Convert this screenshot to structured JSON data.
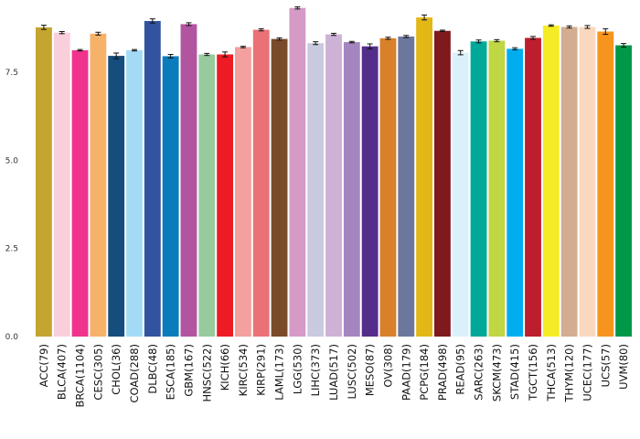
{
  "chart_data": {
    "type": "bar",
    "title": "",
    "xlabel": "",
    "ylabel": "",
    "ylim": [
      0,
      9.4
    ],
    "yticks": [
      0.0,
      2.5,
      5.0,
      7.5
    ],
    "ytick_labels": [
      "0.0",
      "2.5",
      "5.0",
      "7.5"
    ],
    "grid": false,
    "legend": "none",
    "categories": [
      "ACC(79)",
      "BLCA(407)",
      "BRCA(1104)",
      "CESC(305)",
      "CHOL(36)",
      "COAD(288)",
      "DLBC(48)",
      "ESCA(185)",
      "GBM(167)",
      "HNSC(522)",
      "KICH(66)",
      "KIRC(534)",
      "KIRP(291)",
      "LAML(173)",
      "LGG(530)",
      "LIHC(373)",
      "LUAD(517)",
      "LUSC(502)",
      "MESO(87)",
      "OV(308)",
      "PAAD(179)",
      "PCPG(184)",
      "PRAD(498)",
      "READ(95)",
      "SARC(263)",
      "SKCM(473)",
      "STAD(415)",
      "TGCT(156)",
      "THCA(513)",
      "THYM(120)",
      "UCEC(177)",
      "UCS(57)",
      "UVM(80)"
    ],
    "values": [
      8.78,
      8.63,
      8.13,
      8.6,
      7.97,
      8.13,
      8.96,
      7.96,
      8.87,
      8.01,
      8.01,
      8.22,
      8.71,
      8.45,
      9.33,
      8.33,
      8.58,
      8.36,
      8.24,
      8.47,
      8.52,
      9.06,
      8.68,
      8.06,
      8.38,
      8.4,
      8.17,
      8.48,
      8.83,
      8.79,
      8.79,
      8.66,
      8.27
    ],
    "errors": [
      0.06,
      0.03,
      0.02,
      0.04,
      0.08,
      0.02,
      0.06,
      0.05,
      0.04,
      0.03,
      0.07,
      0.02,
      0.03,
      0.03,
      0.03,
      0.04,
      0.03,
      0.02,
      0.07,
      0.03,
      0.03,
      0.07,
      0.02,
      0.06,
      0.04,
      0.03,
      0.03,
      0.04,
      0.02,
      0.03,
      0.04,
      0.08,
      0.05
    ],
    "colors": [
      "#C3A530",
      "#F9CFDC",
      "#F0338C",
      "#F7B26A",
      "#154D7C",
      "#A3DBF7",
      "#3253A0",
      "#0B7CBB",
      "#B155A0",
      "#97CB9E",
      "#ED1C24",
      "#F3A09F",
      "#EA7176",
      "#7A4B2A",
      "#D69AC7",
      "#C9CAE0",
      "#CDB2D5",
      "#A485BF",
      "#542D8A",
      "#D9802A",
      "#6C779D",
      "#E2B817",
      "#7F191D",
      "#DAF1FB",
      "#00A899",
      "#C0D644",
      "#00AEEF",
      "#BD1E2D",
      "#F6EC25",
      "#D2AD8F",
      "#FAD8BF",
      "#F7941D",
      "#009848"
    ]
  }
}
